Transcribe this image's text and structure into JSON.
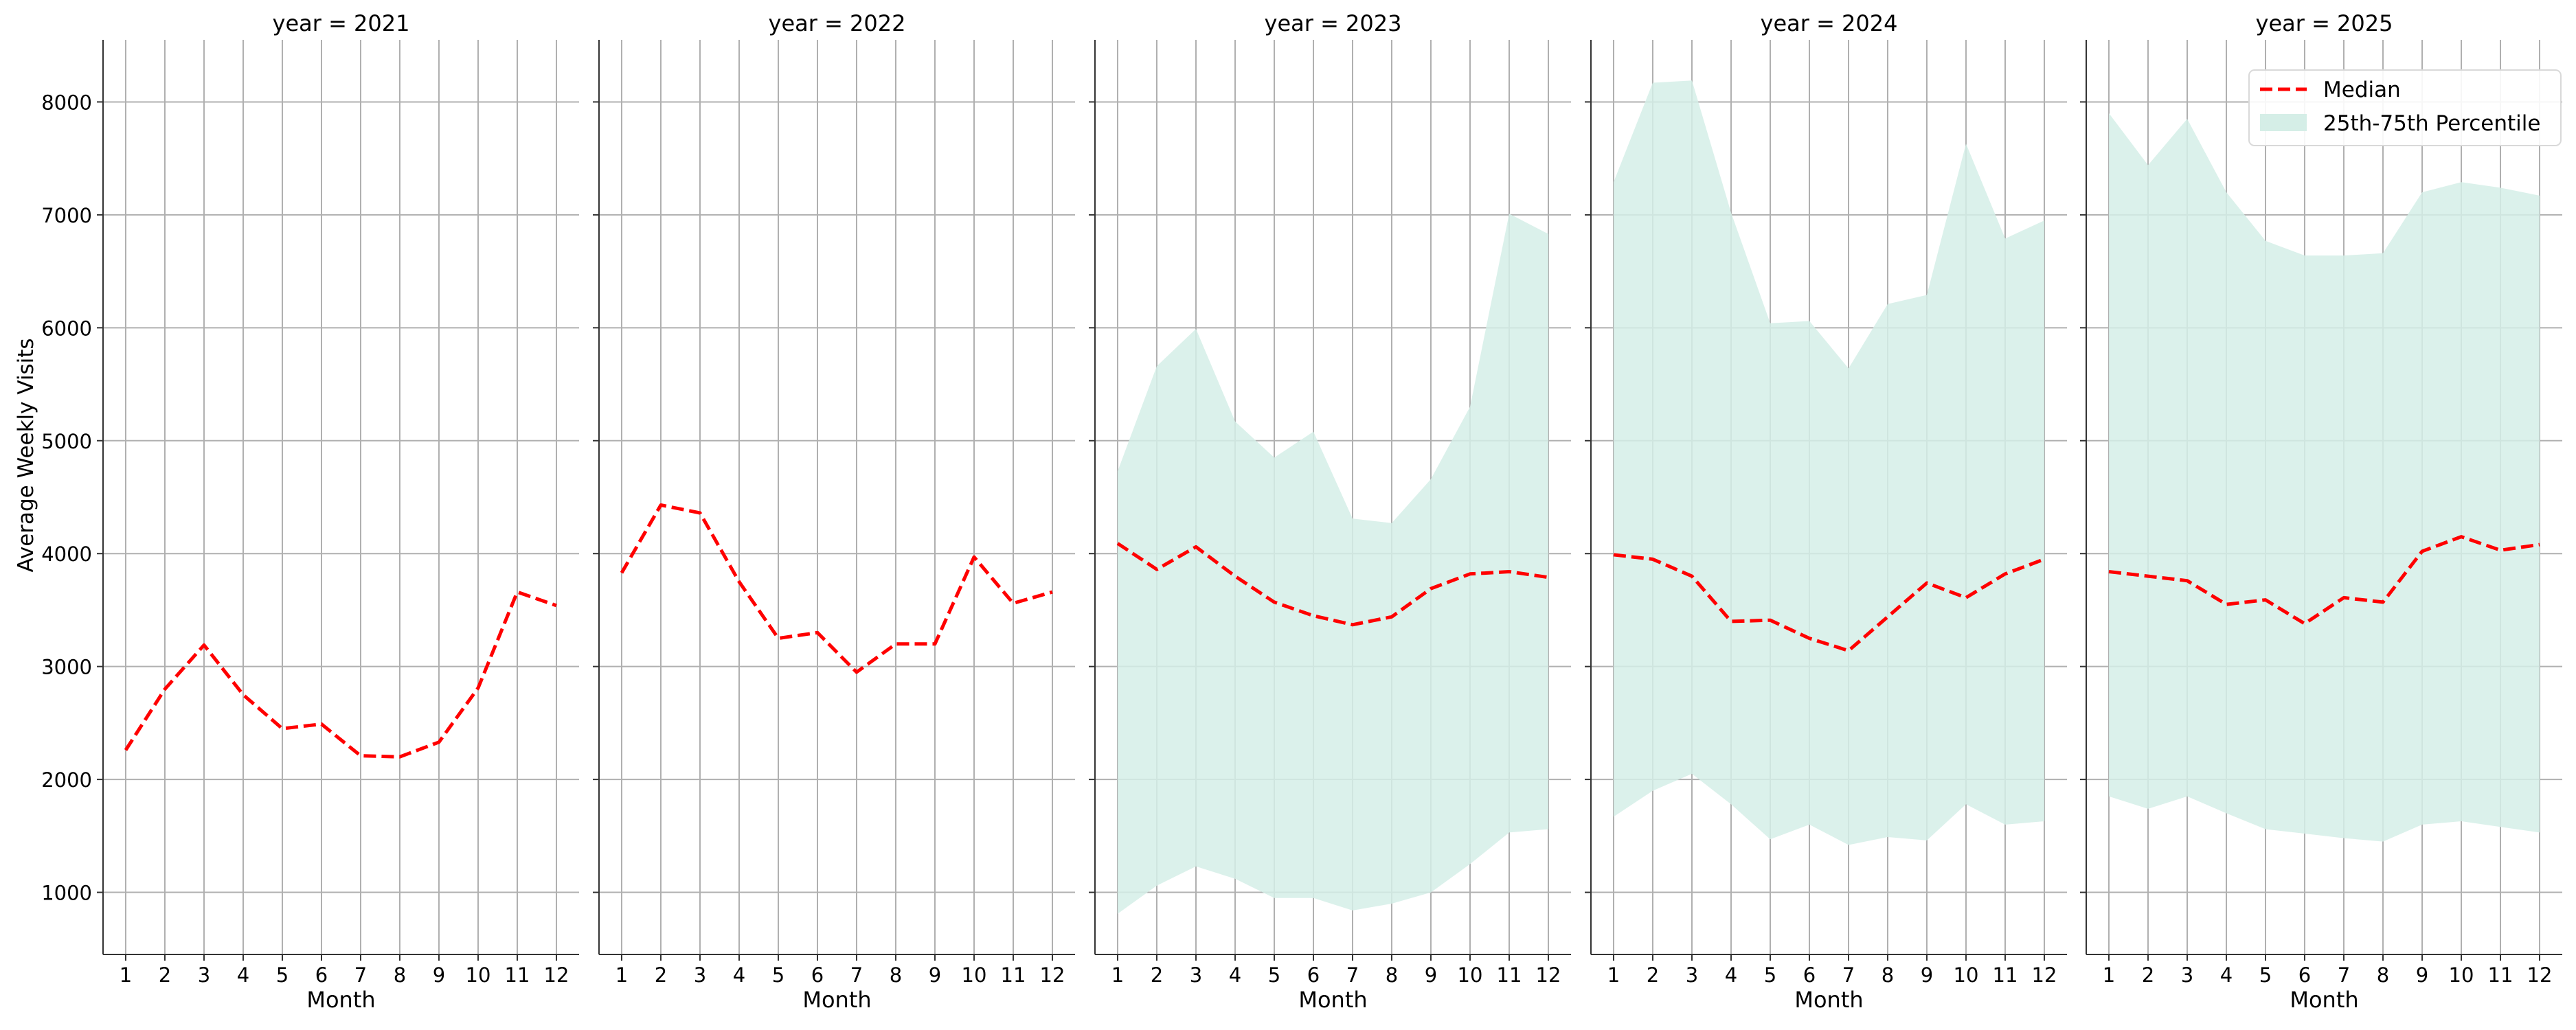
{
  "chart_data": {
    "type": "line",
    "facet_variable": "year",
    "x_label": "Month",
    "y_label": "Average Weekly Visits",
    "x": [
      1,
      2,
      3,
      4,
      5,
      6,
      7,
      8,
      9,
      10,
      11,
      12
    ],
    "ylim": [
      450,
      8550
    ],
    "y_ticks": [
      1000,
      2000,
      3000,
      4000,
      5000,
      6000,
      7000,
      8000
    ],
    "grid": true,
    "legend": {
      "placement": "top-right",
      "entries": [
        {
          "label": "Median",
          "kind": "dashed-line",
          "color": "#ff0000"
        },
        {
          "label": "25th-75th Percentile",
          "kind": "band",
          "color": "#d5eee7"
        }
      ]
    },
    "panels": [
      {
        "title": "year = 2021",
        "median": [
          2260,
          2800,
          3190,
          2750,
          2450,
          2490,
          2210,
          2200,
          2330,
          2810,
          3660,
          3540
        ],
        "p25": null,
        "p75": null
      },
      {
        "title": "year = 2022",
        "median": [
          3830,
          4430,
          4360,
          3750,
          3250,
          3300,
          2950,
          3200,
          3200,
          3970,
          3560,
          3660
        ],
        "p25": null,
        "p75": null
      },
      {
        "title": "year = 2023",
        "median": [
          4090,
          3860,
          4060,
          3800,
          3570,
          3450,
          3370,
          3440,
          3690,
          3820,
          3840,
          3790
        ],
        "p25": [
          810,
          1060,
          1230,
          1120,
          950,
          950,
          840,
          900,
          1000,
          1250,
          1530,
          1560
        ],
        "p75": [
          4730,
          5660,
          5990,
          5170,
          4850,
          5080,
          4310,
          4270,
          4660,
          5300,
          7010,
          6830
        ]
      },
      {
        "title": "year = 2024",
        "median": [
          3990,
          3950,
          3800,
          3400,
          3410,
          3250,
          3140,
          3440,
          3740,
          3610,
          3820,
          3950
        ],
        "p25": [
          1670,
          1900,
          2050,
          1780,
          1470,
          1600,
          1420,
          1490,
          1460,
          1780,
          1600,
          1630
        ],
        "p75": [
          7290,
          8170,
          8190,
          7020,
          6040,
          6060,
          5640,
          6210,
          6290,
          7630,
          6790,
          6950
        ]
      },
      {
        "title": "year = 2025",
        "median": [
          3840,
          3800,
          3760,
          3550,
          3590,
          3380,
          3610,
          3570,
          4020,
          4150,
          4030,
          4080
        ],
        "p25": [
          1850,
          1740,
          1850,
          1700,
          1560,
          1520,
          1480,
          1450,
          1600,
          1630,
          1580,
          1530
        ],
        "p75": [
          7900,
          7440,
          7850,
          7200,
          6770,
          6640,
          6640,
          6660,
          7200,
          7290,
          7240,
          7170
        ]
      }
    ]
  }
}
